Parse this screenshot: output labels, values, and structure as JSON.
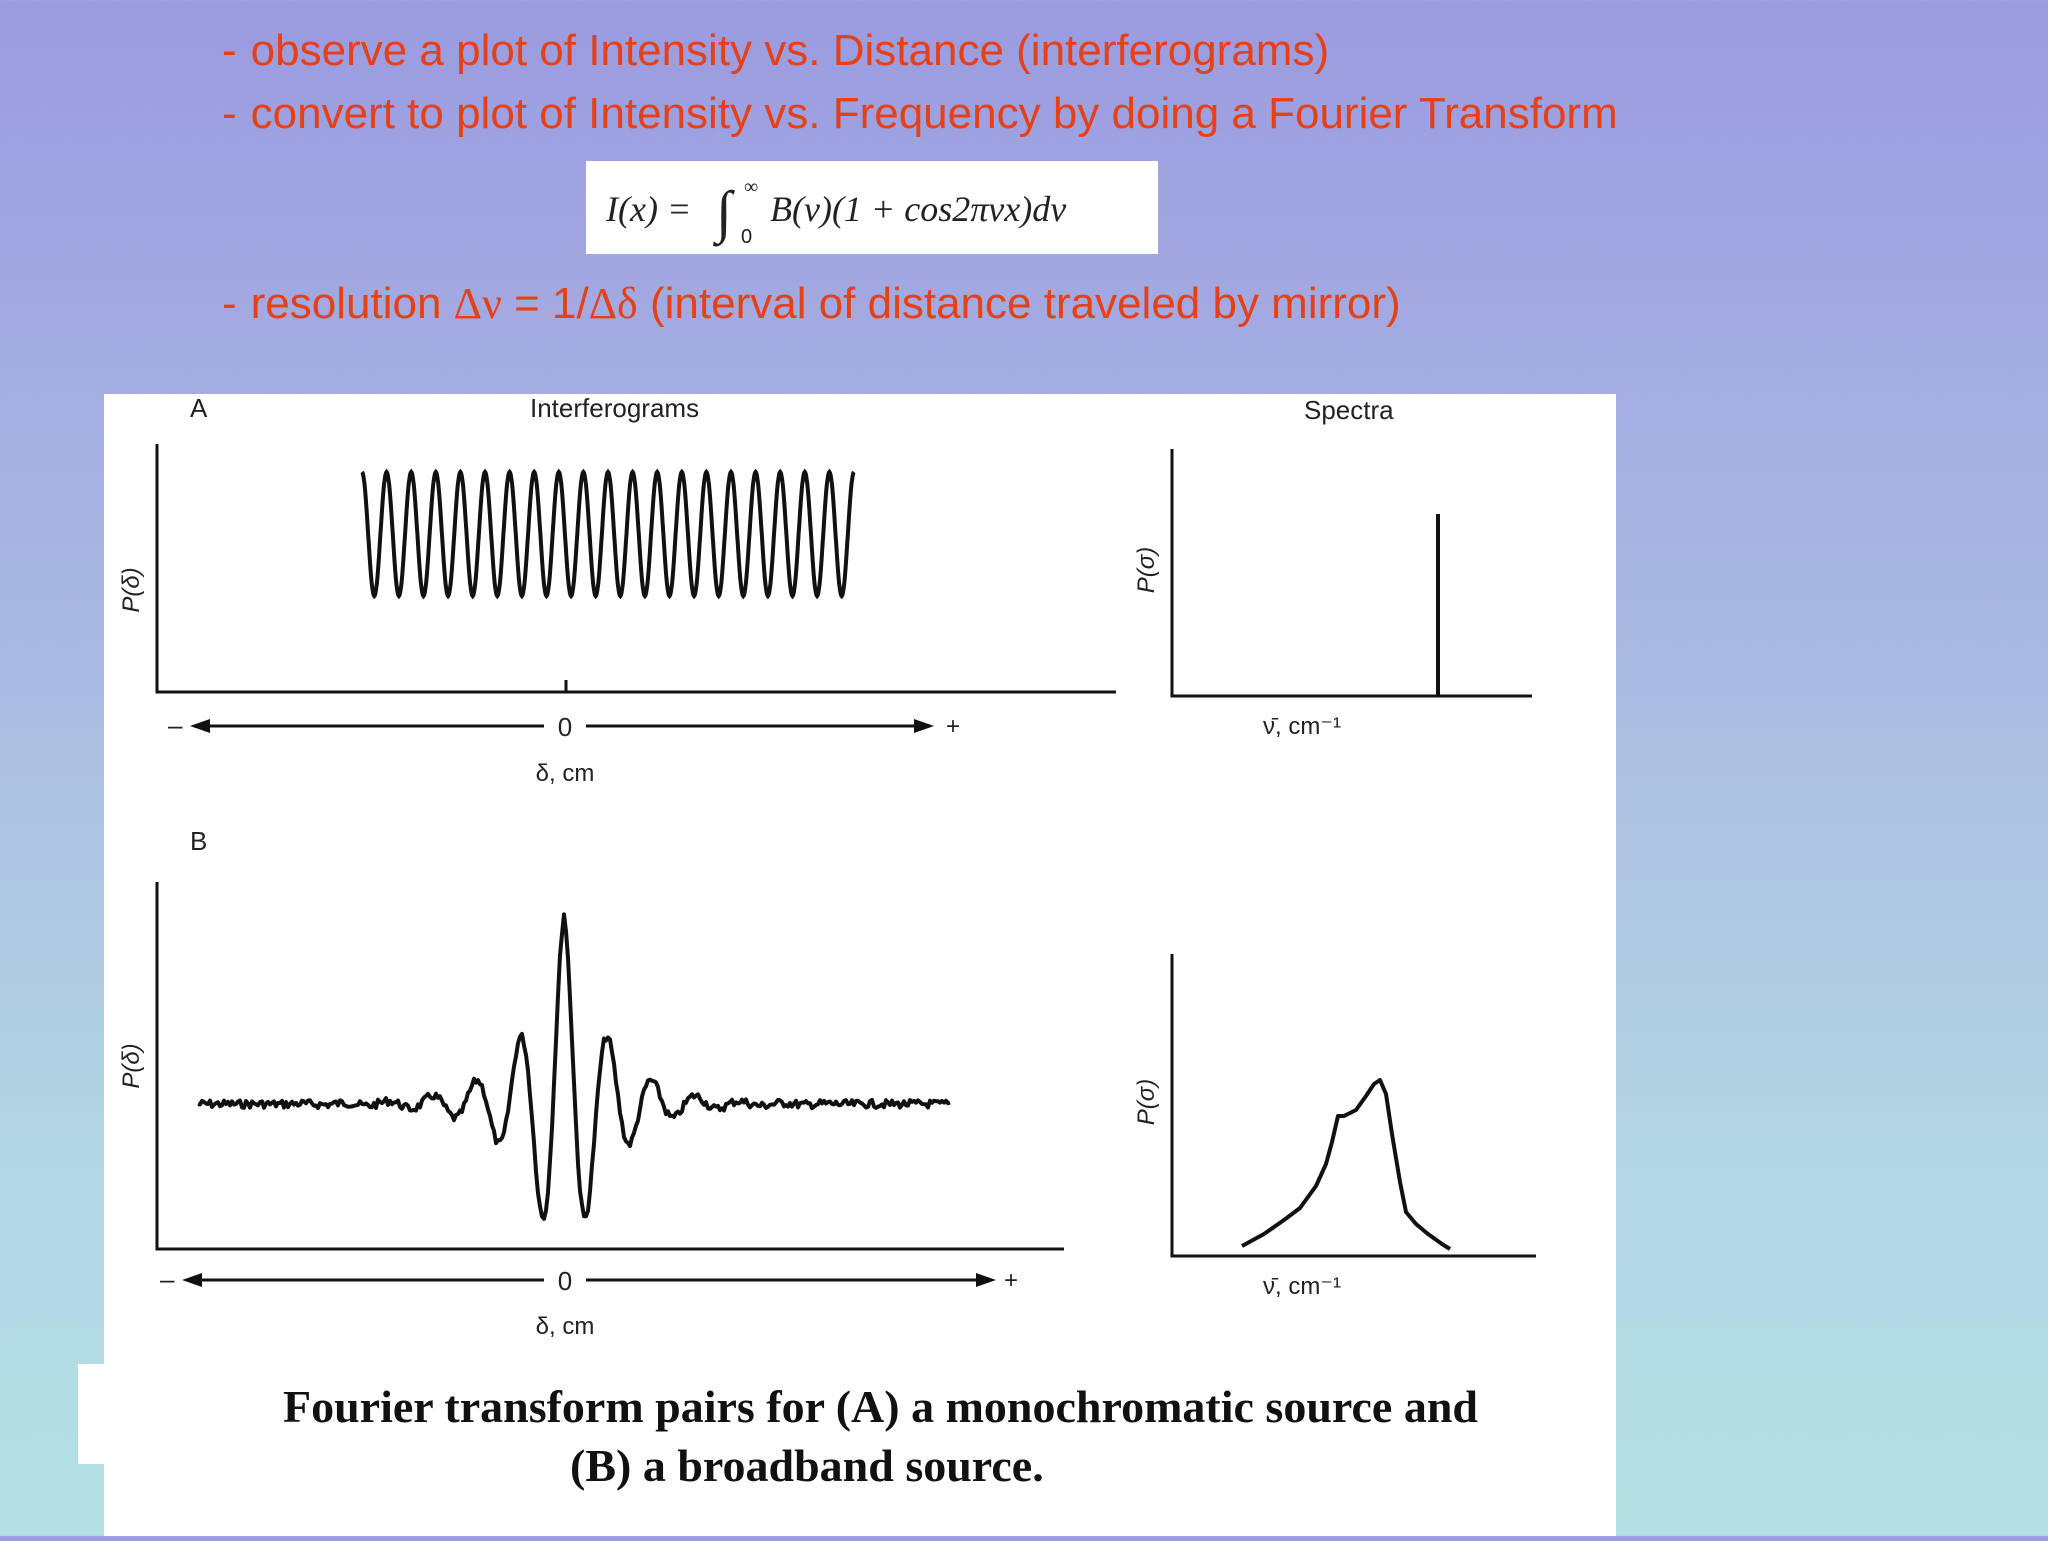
{
  "bullets": {
    "dash": "-",
    "line1": "observe a plot of Intensity vs. Distance (interferograms)",
    "line2": "convert to plot of Intensity vs. Frequency by doing a Fourier Transform",
    "line3_prefix": "resolution ",
    "line3_delta_nu": "Δν",
    "line3_mid": " = 1/",
    "line3_delta_delta": "Δδ",
    "line3_suffix": " (interval of distance traveled by mirror)"
  },
  "formula": {
    "lhs": "I(x) =",
    "integral": "∫",
    "upper_limit": "∞",
    "lower_limit": "0",
    "integrand": "B(ν)(1 + cos2πνx)dν"
  },
  "figure": {
    "panel_a_label": "A",
    "panel_b_label": "B",
    "interferograms_title": "Interferograms",
    "spectra_title": "Spectra",
    "y_label_interferogram": "P(δ)",
    "y_label_spectrum": "P(σ)",
    "x_label_interferogram": "δ, cm",
    "x_label_spectrum": "ν̄, cm⁻¹",
    "origin_label": "0",
    "minus_label": "–",
    "plus_label": "+"
  },
  "caption": {
    "line1": "Fourier transform pairs for (A) a monochromatic source and",
    "line2": "(B) a broadband source."
  },
  "colors": {
    "bullet_text": "#e64016",
    "background_top": "#9b9be0",
    "background_bottom": "#b3e0e3"
  }
}
